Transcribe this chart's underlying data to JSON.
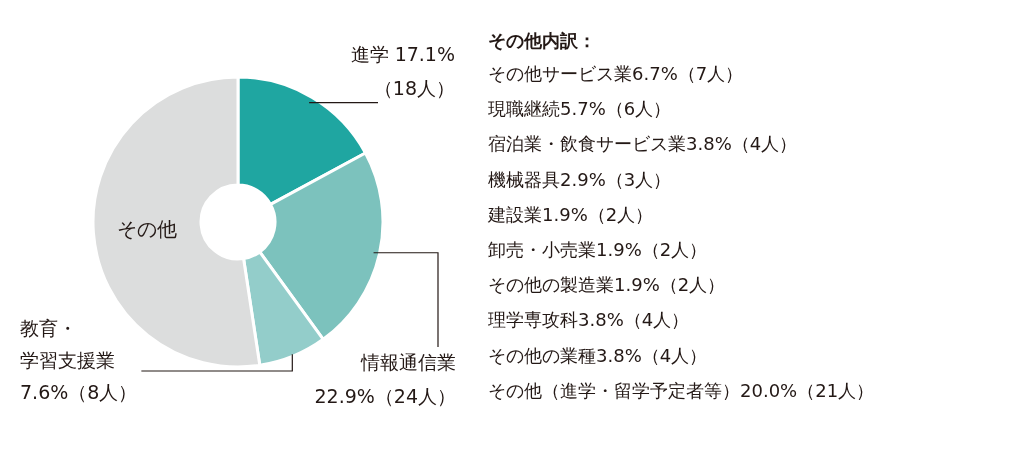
{
  "chart_data": [
    {
      "type": "donut",
      "categories": [
        "進学",
        "情報通信業",
        "教育・学習支援業",
        "その他"
      ],
      "values": [
        17.1,
        22.9,
        7.6,
        52.4
      ],
      "colors": [
        "#1fa6a1",
        "#7cc2bd",
        "#93cdca",
        "#dcdddd"
      ],
      "value_labels": [
        "17.1%（18人）",
        "22.9%（24人）",
        "7.6%（8人）",
        null
      ]
    },
    {
      "type": "other",
      "title": "その他内訳：",
      "annotations": [
        "その他サービス業6.7%（7人）",
        "現職継続5.7%（6人）",
        "宿泊業・飲食サービス業3.8%（4人）",
        "機械器具2.9%（3人）",
        "建設業1.9%（2人）",
        "卸売・小売業1.9%（2人）",
        "その他の製造業1.9%（2人）",
        "理学専攻科3.8%（4人）",
        "その他の業種3.8%（4人）",
        "その他（進学・留学予定者等）20.0%（21人）"
      ]
    }
  ]
}
